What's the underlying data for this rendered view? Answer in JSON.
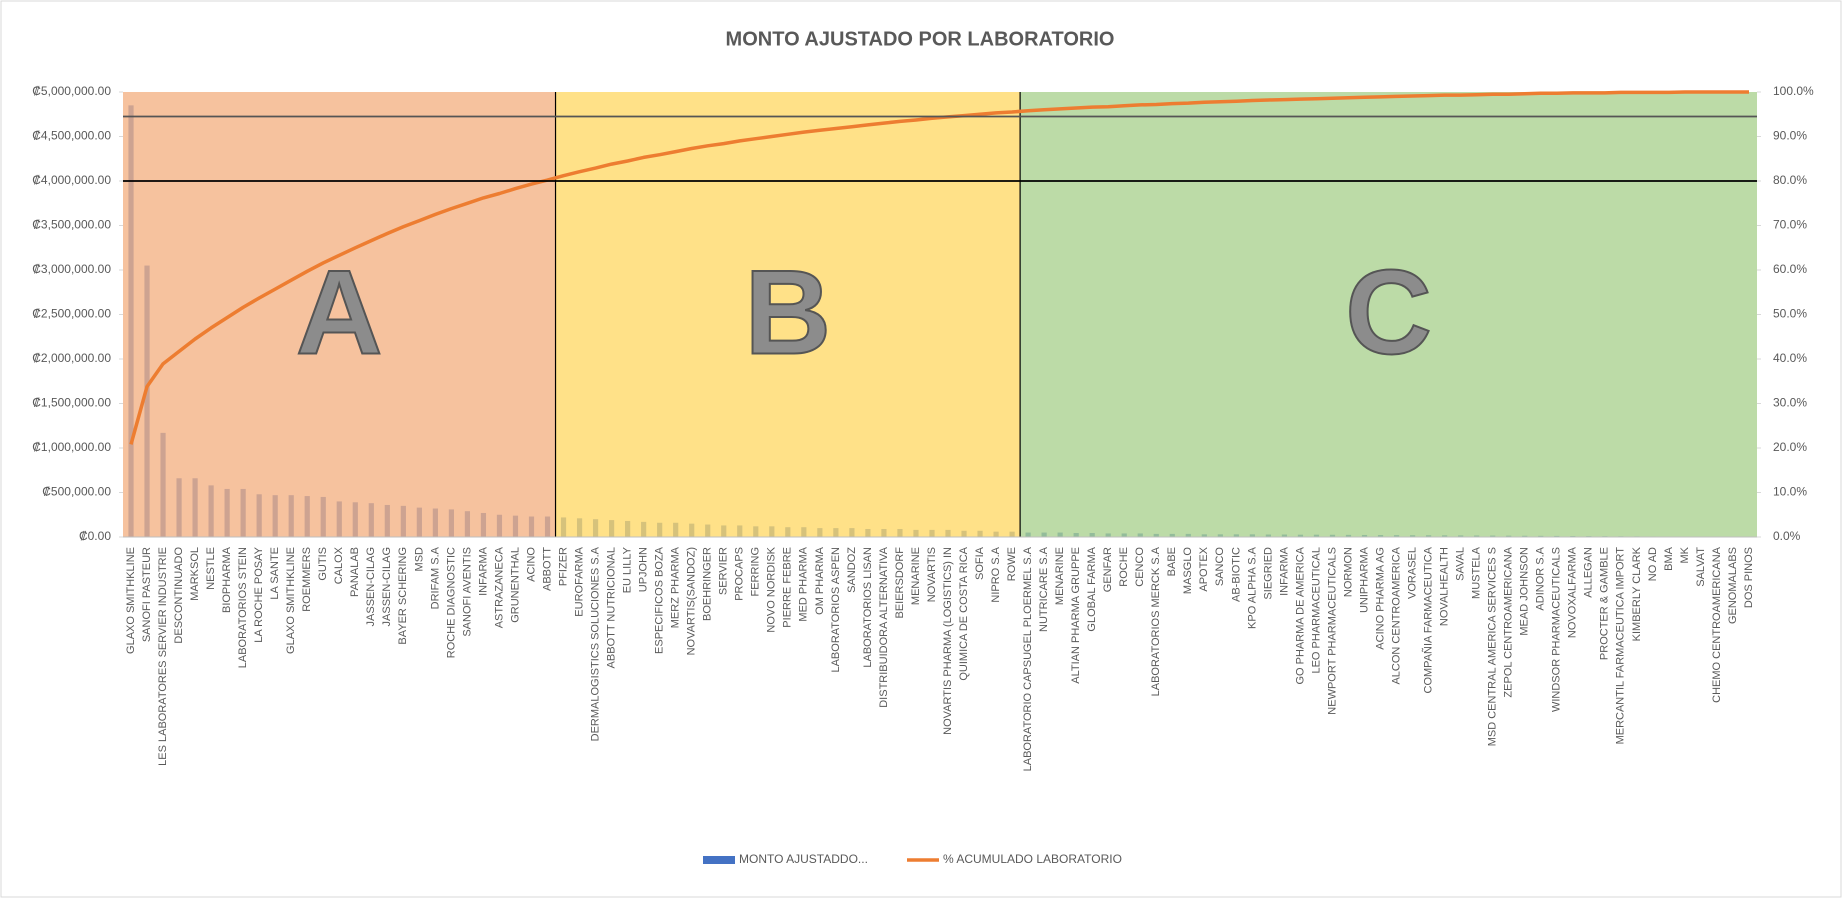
{
  "chart_data": {
    "type": "pareto",
    "title": "MONTO AJUSTADO POR LABORATORIO",
    "categories": [
      "GLAXO SMITHKLINE",
      "SANOFI PASTEUR",
      "LES LABORATORES SERVIER INDUSTRIE",
      "DESCONTINUADO",
      "MARKSOL",
      "NESTLE",
      "BIOPHARMA",
      "LABORATORIOS STEIN",
      "LA ROCHE POSAY",
      "LA SANTE",
      "GLAXO SMITHKLINE",
      "ROEMMERS",
      "GUTIS",
      "CALOX",
      "PANALAB",
      "JASSEN-CILAG",
      "JASSEN-CILAG",
      "BAYER SCHERING",
      "MSD",
      "DRIFAM S.A",
      "ROCHE DIAGNOSTIC",
      "SANOFI AVENTIS",
      "INFARMA",
      "ASTRAZANECA",
      "GRUNENTHAL",
      "ACINO",
      "ABBOTT",
      "PFIZER",
      "EUROFARMA",
      "DERMALOGISTICS SOLUCIONES S.A",
      "ABBOTT NUTRICIONAL",
      "EU LILLY",
      "UPJOHN",
      "ESPECIFICOS BOZA",
      "MERZ PHARMA",
      "NOVARTIS(SANDOZ)",
      "BOEHRINGER",
      "SERVIER",
      "PROCAPS",
      "FERRING",
      "NOVO NORDISK",
      "PIERRE FEBRE",
      "MED PHARMA",
      "OM PHARMA",
      "LABORATORIOS ASPEN",
      "SANDOZ",
      "LABORATORIOS LISAN",
      "DISTRIBUIDORA ALTERNATIVA",
      "BEIERSDORF",
      "MENARINE",
      "NOVARTIS",
      "NOVARTIS PHARMA (LOGISTICS) IN",
      "QUIMICA DE COSTA RICA",
      "SOFIA",
      "NIPRO S.A",
      "ROWE",
      "LABORATORIO CAPSUGEL PLOERMEL S.A",
      "NUTRICARE S.A",
      "MENARINE",
      "ALTIAN PHARMA GRUPPE",
      "GLOBAL FARMA",
      "GENFAR",
      "ROCHE",
      "CENCO",
      "LABORATORIOS MERCK S.A",
      "BABE",
      "MASGLO",
      "APOTEX",
      "SANCO",
      "AB-BIOTIC",
      "KPO ALPHA S.A",
      "SIEGRIED",
      "INFARMA",
      "GO PHARMA DE AMERICA",
      "LEO PHARMACEUTICAL",
      "NEWPORT PHARMACEUTICALS",
      "NORMON",
      "UNIPHARMA",
      "ACINO PHARMA AG",
      "ALCON CENTROAMERICA",
      "VORASEL",
      "COMPAÑIA FARMACEUTICA",
      "NOVALHEALTH",
      "SAVAL",
      "MUSTELA",
      "MSD CENTRAL AMERICA SERVICES S",
      "ZEPOL CENTROAMERICANA",
      "MEAD JOHNSON",
      "ADINOR S.A",
      "WINDSOR PHARMACEUTICALS",
      "NOVOXALFARMA",
      "ALLEGAN",
      "PROCTER & GAMBLE",
      "MERCANTIL FARMACEUTICA IMPORT",
      "KIMBERLY CLARK",
      "NO AD",
      "BMA",
      "MK",
      "SALVAT",
      "CHEMO CENTROAMERICANA",
      "GENOMALABS",
      "DOS PINOS"
    ],
    "series": [
      {
        "name": "MONTO AJUSTADDO...",
        "color": "#4472c4",
        "values": [
          4850000,
          3050000,
          1170000,
          660000,
          660000,
          580000,
          540000,
          540000,
          480000,
          470000,
          470000,
          460000,
          450000,
          400000,
          390000,
          380000,
          360000,
          350000,
          330000,
          320000,
          310000,
          290000,
          270000,
          250000,
          240000,
          230000,
          230000,
          220000,
          210000,
          200000,
          190000,
          180000,
          170000,
          160000,
          160000,
          150000,
          140000,
          130000,
          130000,
          120000,
          120000,
          110000,
          110000,
          100000,
          100000,
          100000,
          90000,
          90000,
          90000,
          80000,
          80000,
          80000,
          70000,
          70000,
          60000,
          60000,
          50000,
          50000,
          50000,
          45000,
          45000,
          40000,
          40000,
          40000,
          35000,
          35000,
          35000,
          30000,
          30000,
          30000,
          30000,
          28000,
          28000,
          26000,
          26000,
          25000,
          24000,
          23000,
          22000,
          21000,
          20000,
          20000,
          19000,
          18000,
          17000,
          16000,
          15000,
          14000,
          13000,
          12000,
          11000,
          10000,
          9000,
          8000,
          7000,
          6000,
          5000,
          4000,
          3000,
          2000,
          1500,
          1000
        ]
      },
      {
        "name": "% ACUMULADO LABORATORIO",
        "color": "#ed7d31",
        "axis": "y2",
        "values": [
          20.8,
          33.8,
          38.9,
          41.7,
          44.5,
          47.0,
          49.3,
          51.6,
          53.7,
          55.7,
          57.7,
          59.7,
          61.6,
          63.3,
          65.0,
          66.6,
          68.2,
          69.7,
          71.1,
          72.5,
          73.8,
          75.0,
          76.2,
          77.2,
          78.3,
          79.3,
          80.2,
          81.2,
          82.1,
          82.9,
          83.8,
          84.5,
          85.3,
          85.9,
          86.6,
          87.3,
          87.9,
          88.4,
          89.0,
          89.5,
          90.0,
          90.5,
          91.0,
          91.4,
          91.8,
          92.2,
          92.6,
          93.0,
          93.4,
          93.7,
          94.1,
          94.4,
          94.7,
          95.0,
          95.3,
          95.5,
          95.8,
          96.0,
          96.2,
          96.4,
          96.6,
          96.7,
          96.9,
          97.1,
          97.2,
          97.4,
          97.5,
          97.7,
          97.8,
          97.9,
          98.1,
          98.2,
          98.3,
          98.4,
          98.5,
          98.6,
          98.7,
          98.8,
          98.9,
          99.0,
          99.1,
          99.2,
          99.3,
          99.3,
          99.4,
          99.5,
          99.5,
          99.6,
          99.7,
          99.7,
          99.8,
          99.8,
          99.8,
          99.9,
          99.9,
          99.9,
          99.9,
          100.0,
          100.0,
          100.0,
          100.0,
          100.0
        ]
      }
    ],
    "ylim": [
      0,
      5000000
    ],
    "yticks": [
      {
        "value": 0,
        "label": "₡0.00"
      },
      {
        "value": 500000,
        "label": "₡500,000.00"
      },
      {
        "value": 1000000,
        "label": "₡1,000,000.00"
      },
      {
        "value": 1500000,
        "label": "₡1,500,000.00"
      },
      {
        "value": 2000000,
        "label": "₡2,000,000.00"
      },
      {
        "value": 2500000,
        "label": "₡2,500,000.00"
      },
      {
        "value": 3000000,
        "label": "₡3,000,000.00"
      },
      {
        "value": 3500000,
        "label": "₡3,500,000.00"
      },
      {
        "value": 4000000,
        "label": "₡4,000,000.00"
      },
      {
        "value": 4500000,
        "label": "₡4,500,000.00"
      },
      {
        "value": 5000000,
        "label": "₡5,000,000.00"
      }
    ],
    "y2lim": [
      0,
      100
    ],
    "y2ticks": [
      {
        "value": 0,
        "label": "0.0%"
      },
      {
        "value": 10,
        "label": "10.0%"
      },
      {
        "value": 20,
        "label": "20.0%"
      },
      {
        "value": 30,
        "label": "30.0%"
      },
      {
        "value": 40,
        "label": "40.0%"
      },
      {
        "value": 50,
        "label": "50.0%"
      },
      {
        "value": 60,
        "label": "60.0%"
      },
      {
        "value": 70,
        "label": "70.0%"
      },
      {
        "value": 80,
        "label": "80.0%"
      },
      {
        "value": 90,
        "label": "90.0%"
      },
      {
        "value": 100,
        "label": "100.0%"
      }
    ],
    "regions": [
      {
        "label": "A",
        "color": "#f4b183",
        "from": 0,
        "to": 26
      },
      {
        "label": "B",
        "color": "#ffd966",
        "from": 27,
        "to": 55
      },
      {
        "label": "C",
        "color": "#a9d18e",
        "from": 56,
        "to": 101
      }
    ],
    "reference_lines": [
      {
        "value": 80,
        "color": "#000000"
      },
      {
        "value": 94.5,
        "color": "#555555"
      }
    ],
    "legend": "bottom"
  }
}
